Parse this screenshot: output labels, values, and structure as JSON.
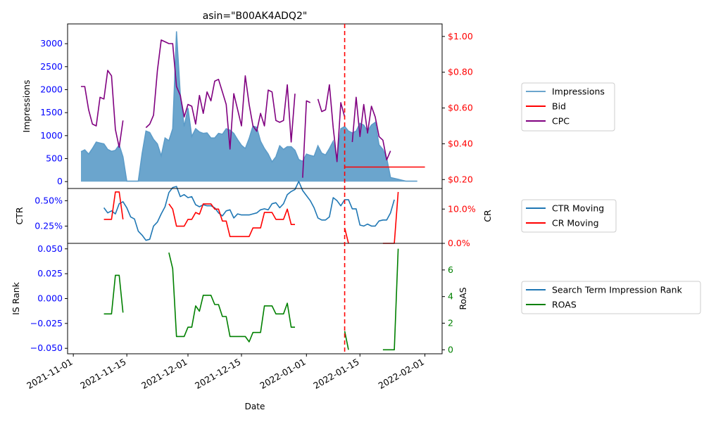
{
  "colors": {
    "impressions_fill": "#5b9bc8",
    "impressions_line": "#5b9bc8",
    "bid": "#ff0000",
    "cpc": "#800080",
    "ctr": "#1f77b4",
    "cr": "#ff0000",
    "is_rank": "#1f77b4",
    "roas": "#008000",
    "left_axis_text": "#0000ff",
    "right_axis_text_top": "#ff0000",
    "right_axis_text_mid": "#ff0000",
    "right_axis_text_bottom": "#008000",
    "vline": "#ff0000"
  },
  "chart_data": {
    "type": "line",
    "title": "asin=\"B00AK4ADQ2\"",
    "xlabel": "Date",
    "date_start": "2021-11-01",
    "xlim": [
      -1,
      42
    ],
    "x_ticks": [
      {
        "label": "2021-11-01",
        "t": 0
      },
      {
        "label": "2021-11-15",
        "t": 14
      },
      {
        "label": "2021-12-01",
        "t": 30
      },
      {
        "label": "2021-12-15",
        "t": 44
      },
      {
        "label": "2022-01-01",
        "t": 61
      },
      {
        "label": "2022-01-15",
        "t": 75
      },
      {
        "label": "2022-02-01",
        "t": 92
      }
    ],
    "vline_date_index": 71,
    "panels": [
      {
        "id": "top",
        "left_axis": {
          "label": "Impressions",
          "ylim": [
            -150,
            3430
          ],
          "ticks": [
            0,
            500,
            1000,
            1500,
            2000,
            2500,
            3000
          ],
          "tick_labels": [
            "0",
            "500",
            "1000",
            "1500",
            "2000",
            "2500",
            "3000"
          ]
        },
        "right_axis": {
          "label": "",
          "ylim": [
            0.15,
            1.07
          ],
          "ticks": [
            0.2,
            0.4,
            0.6,
            0.8,
            1.0
          ],
          "tick_labels": [
            "$0.20",
            "$0.40",
            "$0.60",
            "$0.80",
            "$1.00"
          ]
        },
        "series": [
          {
            "name": "Impressions",
            "axis": "left",
            "kind": "area",
            "start": 2,
            "values": [
              650,
              690,
              600,
              720,
              860,
              840,
              820,
              700,
              660,
              680,
              800,
              540,
              10,
              10,
              10,
              10,
              620,
              1100,
              1070,
              920,
              820,
              560,
              950,
              890,
              1150,
              3270,
              1900,
              1200,
              1600,
              980,
              1150,
              1080,
              1050,
              1060,
              950,
              950,
              1050,
              1030,
              1150,
              1120,
              1050,
              910,
              790,
              720,
              940,
              1210,
              1180,
              880,
              720,
              600,
              430,
              540,
              780,
              700,
              760,
              760,
              680,
              480,
              440,
              600,
              570,
              550,
              780,
              620,
              580,
              720,
              880,
              490,
              1150,
              1200,
              1100,
              1060,
              1100,
              1270,
              1230,
              1100,
              1230,
              1290,
              800,
              700,
              510,
              90,
              70,
              50,
              30,
              10,
              10,
              10,
              10
            ]
          },
          {
            "name": "Bid",
            "axis": "right",
            "kind": "line",
            "start": 71,
            "values": [
              0.27,
              0.27,
              0.27,
              0.27,
              0.27,
              0.27,
              0.27,
              0.27,
              0.27,
              0.27,
              0.27,
              0.27,
              0.27,
              0.27,
              0.27,
              0.27,
              0.27,
              0.27,
              0.27,
              0.27,
              0.27,
              0.27
            ]
          },
          {
            "name": "CPC",
            "axis": "right",
            "kind": "line",
            "start": 2,
            "values": [
              0.72,
              0.72,
              0.59,
              0.51,
              0.5,
              0.66,
              0.65,
              0.81,
              0.78,
              0.48,
              0.38,
              0.53,
              null,
              null,
              null,
              null,
              null,
              0.49,
              0.51,
              0.56,
              0.81,
              0.98,
              0.97,
              0.96,
              0.96,
              0.72,
              0.67,
              0.55,
              0.62,
              0.61,
              0.51,
              0.67,
              0.57,
              0.69,
              0.64,
              0.75,
              0.76,
              0.69,
              0.62,
              0.37,
              0.68,
              0.59,
              0.5,
              0.78,
              0.62,
              0.5,
              0.47,
              0.57,
              0.5,
              0.7,
              0.69,
              0.53,
              0.52,
              0.53,
              0.73,
              0.41,
              0.68,
              null,
              0.21,
              0.64,
              0.63,
              null,
              0.65,
              0.58,
              0.59,
              0.73,
              0.49,
              0.3,
              0.63,
              0.55,
              null,
              0.41,
              0.66,
              0.44,
              0.62,
              0.46,
              0.61,
              0.55,
              0.44,
              0.42,
              0.31,
              0.36
            ]
          }
        ]
      },
      {
        "id": "middle",
        "left_axis": {
          "label": "CTR",
          "ylim": [
            0.0008,
            0.0062
          ],
          "ticks": [
            0.0025,
            0.005
          ],
          "tick_labels": [
            "0.25%",
            "0.50%"
          ]
        },
        "right_axis": {
          "label": "CR",
          "ylim": [
            0,
            0.16
          ],
          "ticks": [
            0.0,
            0.1
          ],
          "tick_labels": [
            "0.0%",
            "10.0%"
          ]
        },
        "series": [
          {
            "name": "CTR Moving",
            "axis": "left",
            "kind": "line",
            "start": 8,
            "values": [
              0.0043,
              0.0038,
              0.004,
              0.0037,
              0.0047,
              0.0049,
              0.0043,
              0.0034,
              0.0032,
              0.002,
              0.0016,
              0.0011,
              0.0012,
              0.0025,
              0.0029,
              0.0037,
              0.0044,
              0.0058,
              0.0063,
              0.0064,
              0.0054,
              0.0056,
              0.0053,
              0.0054,
              0.0046,
              0.0044,
              0.0046,
              0.0045,
              0.0045,
              0.0043,
              0.0038,
              0.0035,
              0.004,
              0.0041,
              0.0033,
              0.0037,
              0.0036,
              0.0036,
              0.0036,
              0.0037,
              0.0038,
              0.0041,
              0.0042,
              0.0041,
              0.0047,
              0.0048,
              0.0043,
              0.0047,
              0.0056,
              0.0059,
              0.0061,
              0.0069,
              0.006,
              0.0055,
              0.005,
              0.0043,
              0.0033,
              0.0031,
              0.0031,
              0.0034,
              0.0053,
              0.005,
              0.0045,
              0.0051,
              0.0051,
              0.0042,
              0.0042,
              0.0026,
              0.0025,
              0.0027,
              0.0025,
              0.0025,
              0.003,
              0.0031,
              0.0031,
              0.0038,
              0.0051
            ]
          },
          {
            "name": "CR Moving",
            "axis": "right",
            "kind": "line",
            "start": 8,
            "values": [
              0.07,
              0.07,
              0.07,
              0.15,
              0.15,
              0.07,
              null,
              null,
              null,
              null,
              null,
              null,
              null,
              null,
              null,
              null,
              null,
              0.115,
              0.1,
              0.05,
              0.05,
              0.05,
              0.07,
              0.07,
              0.09,
              0.085,
              0.115,
              0.115,
              0.115,
              0.1,
              0.1,
              0.065,
              0.065,
              0.02,
              0.02,
              0.02,
              0.02,
              0.02,
              0.02,
              0.045,
              0.045,
              0.045,
              0.09,
              0.09,
              0.09,
              0.07,
              0.07,
              0.07,
              0.1,
              0.055,
              0.055,
              null,
              null,
              null,
              null,
              null,
              null,
              null,
              null,
              null,
              null,
              null,
              null,
              0.045,
              0.0,
              null,
              null,
              null,
              null,
              null,
              null,
              null,
              null,
              0.0,
              0.0,
              0.0,
              0.0,
              0.15
            ]
          }
        ]
      },
      {
        "id": "bottom",
        "left_axis": {
          "label": "IS Rank",
          "ylim": [
            -0.0555,
            0.0555
          ],
          "ticks": [
            -0.05,
            -0.025,
            0.0,
            0.025,
            0.05
          ],
          "tick_labels": [
            "−0.050",
            "−0.025",
            "0.000",
            "0.025",
            "0.050"
          ]
        },
        "right_axis": {
          "label": "RoAS",
          "ylim": [
            -0.3,
            8.0
          ],
          "ticks": [
            0,
            2,
            4,
            6
          ],
          "tick_labels": [
            "0",
            "2",
            "4",
            "6"
          ]
        },
        "series": [
          {
            "name": "Search Term Impression Rank",
            "axis": "left",
            "kind": "line",
            "start": 0,
            "values": []
          },
          {
            "name": "ROAS",
            "axis": "right",
            "kind": "line",
            "start": 8,
            "values": [
              2.7,
              2.7,
              2.7,
              5.6,
              5.6,
              2.8,
              null,
              null,
              null,
              null,
              null,
              null,
              null,
              null,
              null,
              null,
              null,
              7.3,
              6.1,
              1.0,
              1.0,
              1.0,
              1.7,
              1.7,
              3.3,
              2.9,
              4.1,
              4.1,
              4.1,
              3.4,
              3.4,
              2.5,
              2.5,
              1.0,
              1.0,
              1.0,
              1.0,
              1.0,
              0.6,
              1.3,
              1.3,
              1.3,
              3.3,
              3.3,
              3.3,
              2.7,
              2.7,
              2.7,
              3.5,
              1.7,
              1.7,
              null,
              null,
              null,
              null,
              null,
              null,
              null,
              null,
              null,
              null,
              null,
              null,
              1.4,
              0.0,
              null,
              null,
              null,
              null,
              null,
              null,
              null,
              null,
              0.0,
              0.0,
              0.0,
              0.0,
              7.6
            ]
          }
        ]
      }
    ],
    "legends": [
      {
        "panel": "top",
        "placement": "right",
        "entries": [
          {
            "label": "Impressions",
            "series": "Impressions"
          },
          {
            "label": "Bid",
            "series": "Bid"
          },
          {
            "label": "CPC",
            "series": "CPC"
          }
        ]
      },
      {
        "panel": "middle",
        "placement": "right",
        "entries": [
          {
            "label": "CTR Moving",
            "series": "CTR Moving"
          },
          {
            "label": "CR Moving",
            "series": "CR Moving"
          }
        ]
      },
      {
        "panel": "bottom",
        "placement": "right",
        "entries": [
          {
            "label": "Search Term Impression Rank",
            "series": "Search Term Impression Rank"
          },
          {
            "label": "ROAS",
            "series": "ROAS"
          }
        ]
      }
    ]
  }
}
